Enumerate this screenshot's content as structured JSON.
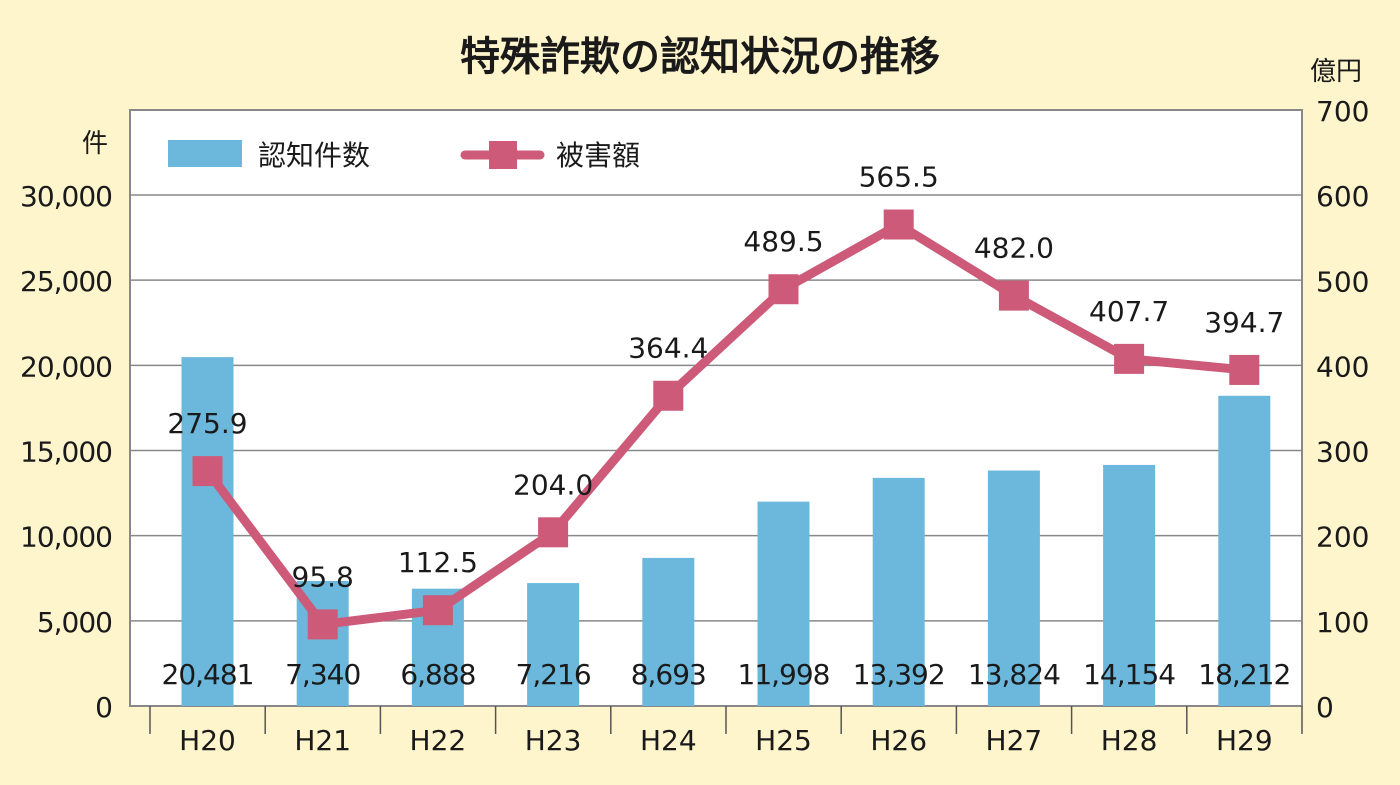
{
  "chart_data": {
    "type": "bar+line",
    "title": "特殊詐欺の認知状況の推移",
    "categories": [
      "H20",
      "H21",
      "H22",
      "H23",
      "H24",
      "H25",
      "H26",
      "H27",
      "H28",
      "H29"
    ],
    "left_axis": {
      "unit": "件",
      "range": [
        0,
        30000
      ],
      "ticks": [
        "0",
        "5,000",
        "10,000",
        "15,000",
        "20,000",
        "25,000",
        "30,000"
      ]
    },
    "right_axis": {
      "unit": "億円",
      "range": [
        0,
        700
      ],
      "ticks": [
        "0",
        "100",
        "200",
        "300",
        "400",
        "500",
        "600",
        "700"
      ]
    },
    "grid": true,
    "legend_placement": "top-left",
    "series": [
      {
        "name": "認知件数",
        "type": "bar",
        "axis": "left",
        "color": "#6bb8dc",
        "values": [
          20481,
          7340,
          6888,
          7216,
          8693,
          11998,
          13392,
          13824,
          14154,
          18212
        ],
        "labels": [
          "20,481",
          "7,340",
          "6,888",
          "7,216",
          "8,693",
          "11,998",
          "13,392",
          "13,824",
          "14,154",
          "18,212"
        ]
      },
      {
        "name": "被害額",
        "type": "line",
        "axis": "right",
        "color": "#cc5a78",
        "values": [
          275.9,
          95.8,
          112.5,
          204.0,
          364.4,
          489.5,
          565.5,
          482.0,
          407.7,
          394.7
        ],
        "labels": [
          "275.9",
          "95.8",
          "112.5",
          "204.0",
          "364.4",
          "489.5",
          "565.5",
          "482.0",
          "407.7",
          "394.7"
        ]
      }
    ]
  }
}
